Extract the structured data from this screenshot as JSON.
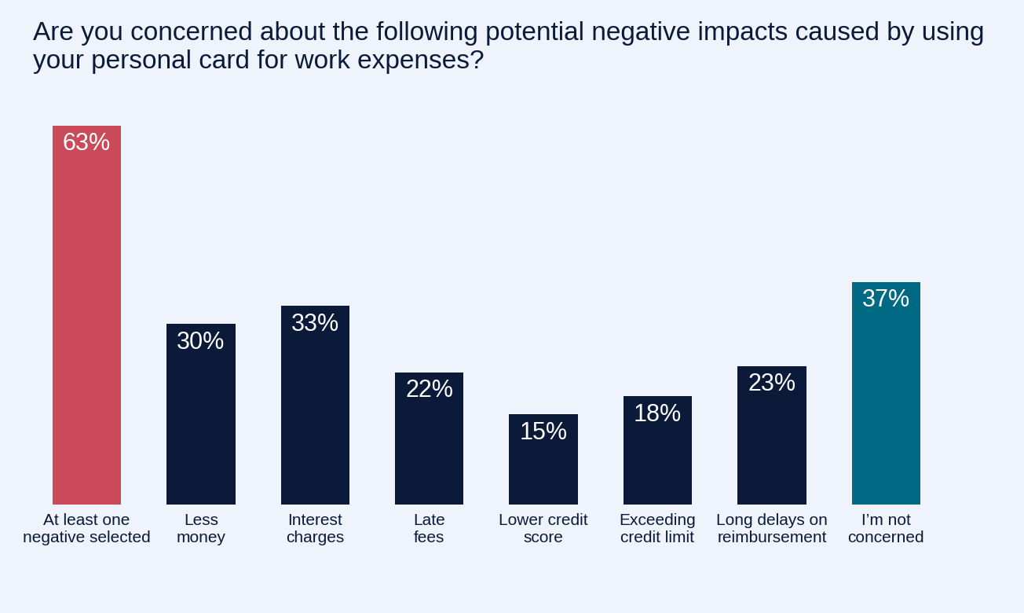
{
  "chart_data": {
    "type": "bar",
    "title": "Are you concerned about the following potential negative impacts caused by using your personal card for work expenses?",
    "categories": [
      "At least one\nnegative selected",
      "Less\nmoney",
      "Interest\ncharges",
      "Late\nfees",
      "Lower credit\nscore",
      "Exceeding\ncredit limit",
      "Long delays on\nreimbursement",
      "I’m not\nconcerned"
    ],
    "values": [
      63,
      30,
      33,
      22,
      15,
      18,
      23,
      37
    ],
    "value_labels": [
      "63%",
      "30%",
      "33%",
      "22%",
      "15%",
      "18%",
      "23%",
      "37%"
    ],
    "colors": [
      "#CB4A5A",
      "#0B1A38",
      "#0B1A38",
      "#0B1A38",
      "#0B1A38",
      "#0B1A38",
      "#0B1A38",
      "#006A85"
    ],
    "ylim": [
      0,
      63
    ],
    "data_labels": true,
    "tick_labels": "x",
    "grid": false
  }
}
